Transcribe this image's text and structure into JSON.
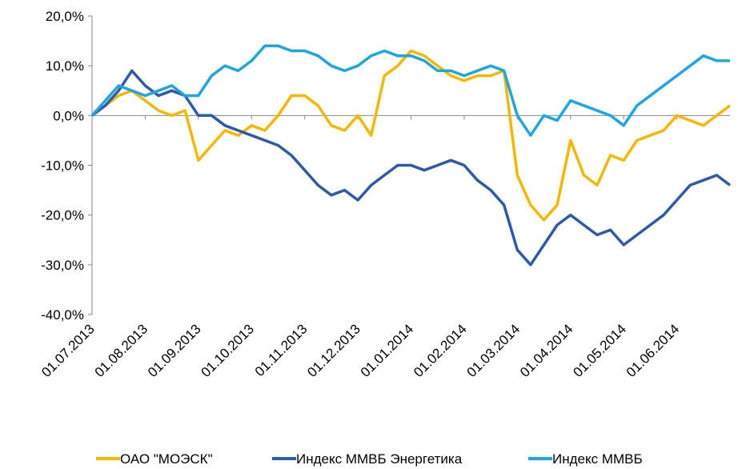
{
  "chart_data": {
    "type": "line",
    "categories": [
      "01.07.2013",
      null,
      null,
      null,
      "01.08.2013",
      null,
      null,
      null,
      "01.09.2013",
      null,
      null,
      null,
      "01.10.2013",
      null,
      null,
      null,
      "01.11.2013",
      null,
      null,
      null,
      "01.12.2013",
      null,
      null,
      null,
      "01.01.2014",
      null,
      null,
      null,
      "01.02.2014",
      null,
      null,
      null,
      "01.03.2014",
      null,
      null,
      null,
      "01.04.2014",
      null,
      null,
      null,
      "01.05.2014",
      null,
      null,
      null,
      "01.06.2014",
      null,
      null,
      null,
      null
    ],
    "series": [
      {
        "name": "ОАО \"МОЭСК\"",
        "color": "#f5b800",
        "values": [
          0,
          2,
          4,
          5,
          3,
          1,
          0,
          1,
          -9,
          -6,
          -3,
          -4,
          -2,
          -3,
          0,
          4,
          4,
          2,
          -2,
          -3,
          0,
          -4,
          8,
          10,
          13,
          12,
          10,
          8,
          7,
          8,
          8,
          9,
          -12,
          -18,
          -21,
          -18,
          -5,
          -12,
          -14,
          -8,
          -9,
          -5,
          -4,
          -3,
          0,
          -1,
          -2,
          0,
          2
        ]
      },
      {
        "name": "Индекс ММВБ Энергетика",
        "color": "#2e5aa8",
        "values": [
          0,
          2,
          5,
          9,
          6,
          4,
          5,
          4,
          0,
          0,
          -2,
          -3,
          -4,
          -5,
          -6,
          -8,
          -11,
          -14,
          -16,
          -15,
          -17,
          -14,
          -12,
          -10,
          -10,
          -11,
          -10,
          -9,
          -10,
          -13,
          -15,
          -18,
          -27,
          -30,
          -26,
          -22,
          -20,
          -22,
          -24,
          -23,
          -26,
          -24,
          -22,
          -20,
          -17,
          -14,
          -13,
          -12,
          -14
        ]
      },
      {
        "name": "Индекс ММВБ",
        "color": "#1ea6e0",
        "values": [
          0,
          3,
          6,
          5,
          4,
          5,
          6,
          4,
          4,
          8,
          10,
          9,
          11,
          14,
          14,
          13,
          13,
          12,
          10,
          9,
          10,
          12,
          13,
          12,
          12,
          11,
          9,
          9,
          8,
          9,
          10,
          9,
          0,
          -4,
          0,
          -1,
          3,
          2,
          1,
          0,
          -2,
          2,
          4,
          6,
          8,
          10,
          12,
          11,
          11
        ]
      }
    ],
    "ylim": [
      -40,
      20
    ],
    "yticks": [
      {
        "value": 20,
        "label": "20,0%"
      },
      {
        "value": 10,
        "label": "10,0%"
      },
      {
        "value": 0,
        "label": "0,0%"
      },
      {
        "value": -10,
        "label": "-10,0%"
      },
      {
        "value": -20,
        "label": "-20,0%"
      },
      {
        "value": -30,
        "label": "-30,0%"
      },
      {
        "value": -40,
        "label": "-40,0%"
      }
    ],
    "legend": "bottom"
  }
}
